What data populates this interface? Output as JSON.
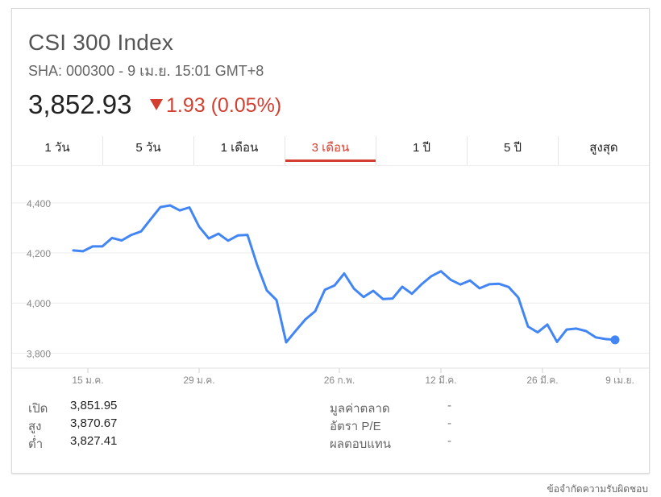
{
  "header": {
    "title": "CSI 300 Index",
    "subtitle": "SHA: 000300 - 9 เม.ย. 15:01 GMT+8",
    "price": "3,852.93",
    "change": "1.93 (0.05%)",
    "change_color": "#d23f31"
  },
  "tabs": [
    {
      "label": "1 วัน",
      "active": false
    },
    {
      "label": "5 วัน",
      "active": false
    },
    {
      "label": "1 เดือน",
      "active": false
    },
    {
      "label": "3 เดือน",
      "active": true
    },
    {
      "label": "1 ปี",
      "active": false
    },
    {
      "label": "5 ปี",
      "active": false
    },
    {
      "label": "สูงสุด",
      "active": false
    }
  ],
  "chart_data": {
    "type": "line",
    "line_color": "#4285f4",
    "y_ticks": [
      4400,
      4200,
      4000,
      3800
    ],
    "y_tick_labels": [
      "4,400",
      "4,200",
      "4,000",
      "3,800"
    ],
    "ylim": [
      3740,
      4480
    ],
    "x_tick_labels": [
      "15 ม.ค.",
      "29 ม.ค.",
      "26 ก.พ.",
      "12 มี.ค.",
      "26 มี.ค.",
      "9 เม.ย."
    ],
    "x_tick_index": [
      1.5,
      13,
      27.5,
      38,
      48.5,
      56.5
    ],
    "grid": true,
    "series": [
      {
        "values": [
          4210,
          4207,
          4226,
          4226,
          4260,
          4250,
          4272,
          4286,
          4335,
          4383,
          4390,
          4370,
          4382,
          4305,
          4258,
          4277,
          4249,
          4270,
          4272,
          4152,
          4050,
          4012,
          3843,
          3890,
          3935,
          3967,
          4053,
          4070,
          4118,
          4058,
          4024,
          4049,
          4016,
          4018,
          4065,
          4037,
          4075,
          4107,
          4127,
          4093,
          4074,
          4090,
          4059,
          4075,
          4077,
          4064,
          4022,
          3906,
          3883,
          3914,
          3845,
          3894,
          3898,
          3888,
          3863,
          3856,
          3853
        ],
        "last_point_marker": true
      }
    ]
  },
  "stats_left": [
    {
      "label": "เปิด",
      "value": "3,851.95"
    },
    {
      "label": "สูง",
      "value": "3,870.67"
    },
    {
      "label": "ต่ำ",
      "value": "3,827.41"
    }
  ],
  "stats_right": [
    {
      "label": "มูลค่าตลาด",
      "value": "-"
    },
    {
      "label": "อัตรา P/E",
      "value": "-"
    },
    {
      "label": "ผลตอบแทน",
      "value": "-"
    }
  ],
  "disclaimer": "ข้อจำกัดความรับผิดชอบ"
}
